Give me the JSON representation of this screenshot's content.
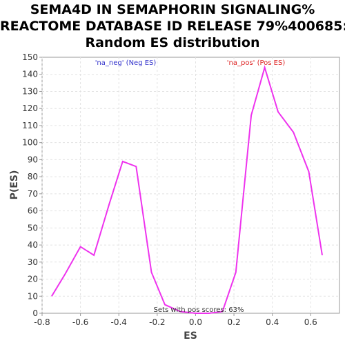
{
  "chart_data": {
    "type": "line",
    "title_lines": [
      "SEMA4D IN SEMAPHORIN SIGNALING%",
      "REACTOME DATABASE ID RELEASE 79%400685:",
      "Random ES distribution"
    ],
    "xlabel": "ES",
    "ylabel": "P(ES)",
    "xlim": [
      -0.8,
      0.75
    ],
    "ylim": [
      0,
      150
    ],
    "x_ticks": [
      "-0.8",
      "-0.6",
      "-0.4",
      "-0.2",
      "0.0",
      "0.2",
      "0.4",
      "0.6"
    ],
    "y_ticks": [
      "0",
      "10",
      "20",
      "30",
      "40",
      "50",
      "60",
      "70",
      "80",
      "90",
      "100",
      "110",
      "120",
      "130",
      "140",
      "150"
    ],
    "grid": true,
    "series": [
      {
        "color": "#ee33ee",
        "x": [
          -0.75,
          -0.68,
          -0.6,
          -0.53,
          -0.45,
          -0.38,
          -0.31,
          -0.23,
          -0.16,
          -0.08,
          0.0,
          0.07,
          0.14,
          0.21,
          0.29,
          0.36,
          0.43,
          0.51,
          0.59,
          0.66
        ],
        "y": [
          10,
          23,
          39,
          34,
          64,
          89,
          86,
          24,
          5,
          1,
          0,
          0,
          1,
          24,
          116,
          144,
          118,
          106,
          83,
          34
        ]
      }
    ],
    "annotations": {
      "neg": {
        "text": "'na_neg' (Neg ES)",
        "color": "#3333cc"
      },
      "pos": {
        "text": "'na_pos' (Pos ES)",
        "color": "#dd2222"
      },
      "footer": {
        "text": "Sets with pos scores: 63%",
        "color": "#333333"
      }
    }
  }
}
